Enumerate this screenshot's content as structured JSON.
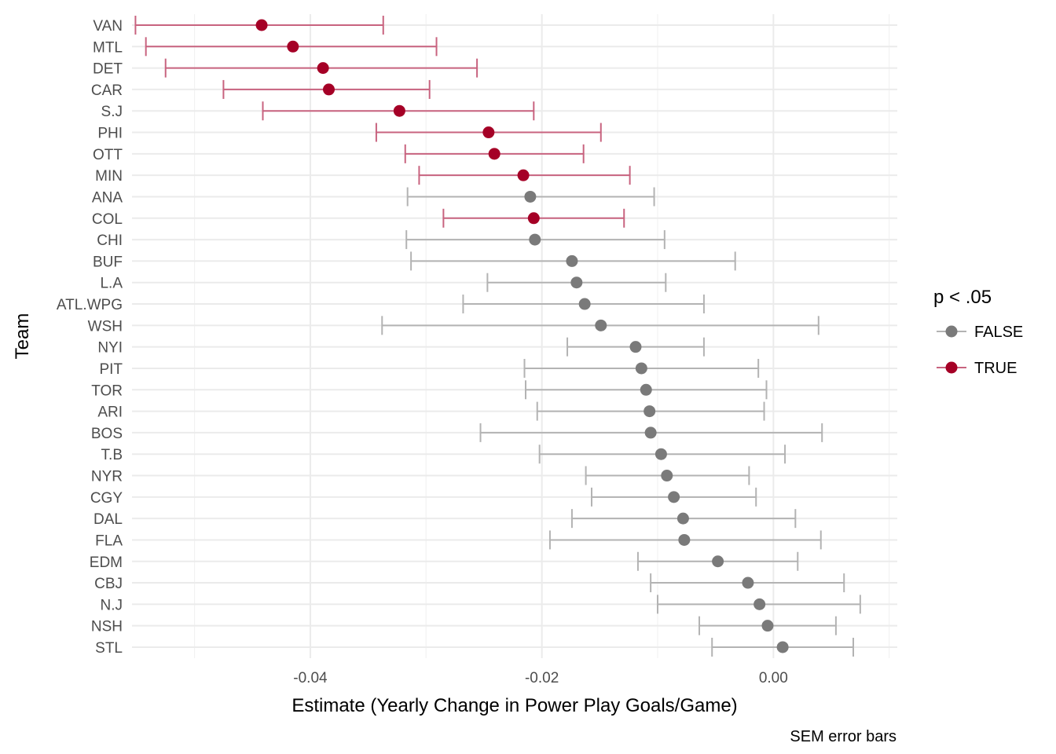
{
  "chart_data": {
    "type": "scatter",
    "xlabel": "Estimate (Yearly Change in Power Play Goals/Game)",
    "ylabel": "Team",
    "caption": "SEM error bars",
    "xlim": [
      -0.0554,
      0.0107
    ],
    "xticks": [
      {
        "value": -0.04,
        "label": "-0.04"
      },
      {
        "value": -0.02,
        "label": "-0.02"
      },
      {
        "value": 0.0,
        "label": "0.00"
      }
    ],
    "minor_xticks": [
      -0.05,
      -0.03,
      -0.01,
      0.01
    ],
    "grid": true,
    "colors": {
      "FALSE": "#7a7a7a",
      "TRUE": "#a50026",
      "bar_FALSE": "#b3b3b3",
      "bar_TRUE": "#c8637f"
    },
    "legend": {
      "title": "p < .05",
      "placement": "right",
      "entries": [
        {
          "label": "FALSE",
          "key": "FALSE"
        },
        {
          "label": "TRUE",
          "key": "TRUE"
        }
      ]
    },
    "teams": [
      {
        "team": "VAN",
        "estimate": -0.0442,
        "low": -0.0551,
        "high": -0.0337,
        "sig": "TRUE"
      },
      {
        "team": "MTL",
        "estimate": -0.0415,
        "low": -0.0542,
        "high": -0.0291,
        "sig": "TRUE"
      },
      {
        "team": "DET",
        "estimate": -0.0389,
        "low": -0.0525,
        "high": -0.0256,
        "sig": "TRUE"
      },
      {
        "team": "CAR",
        "estimate": -0.0384,
        "low": -0.0475,
        "high": -0.0297,
        "sig": "TRUE"
      },
      {
        "team": "S.J",
        "estimate": -0.0323,
        "low": -0.0441,
        "high": -0.0207,
        "sig": "TRUE"
      },
      {
        "team": "PHI",
        "estimate": -0.0246,
        "low": -0.0343,
        "high": -0.0149,
        "sig": "TRUE"
      },
      {
        "team": "OTT",
        "estimate": -0.0241,
        "low": -0.0318,
        "high": -0.0164,
        "sig": "TRUE"
      },
      {
        "team": "MIN",
        "estimate": -0.0216,
        "low": -0.0306,
        "high": -0.0124,
        "sig": "TRUE"
      },
      {
        "team": "ANA",
        "estimate": -0.021,
        "low": -0.0316,
        "high": -0.0103,
        "sig": "FALSE"
      },
      {
        "team": "COL",
        "estimate": -0.0207,
        "low": -0.0285,
        "high": -0.0129,
        "sig": "TRUE"
      },
      {
        "team": "CHI",
        "estimate": -0.0206,
        "low": -0.0317,
        "high": -0.0094,
        "sig": "FALSE"
      },
      {
        "team": "BUF",
        "estimate": -0.0174,
        "low": -0.0313,
        "high": -0.0033,
        "sig": "FALSE"
      },
      {
        "team": "L.A",
        "estimate": -0.017,
        "low": -0.0247,
        "high": -0.0093,
        "sig": "FALSE"
      },
      {
        "team": "ATL.WPG",
        "estimate": -0.0163,
        "low": -0.0268,
        "high": -0.006,
        "sig": "FALSE"
      },
      {
        "team": "WSH",
        "estimate": -0.0149,
        "low": -0.0338,
        "high": 0.0039,
        "sig": "FALSE"
      },
      {
        "team": "NYI",
        "estimate": -0.0119,
        "low": -0.0178,
        "high": -0.006,
        "sig": "FALSE"
      },
      {
        "team": "PIT",
        "estimate": -0.0114,
        "low": -0.0215,
        "high": -0.0013,
        "sig": "FALSE"
      },
      {
        "team": "TOR",
        "estimate": -0.011,
        "low": -0.0214,
        "high": -0.0006,
        "sig": "FALSE"
      },
      {
        "team": "ARI",
        "estimate": -0.0107,
        "low": -0.0204,
        "high": -0.0008,
        "sig": "FALSE"
      },
      {
        "team": "BOS",
        "estimate": -0.0106,
        "low": -0.0253,
        "high": 0.0042,
        "sig": "FALSE"
      },
      {
        "team": "T.B",
        "estimate": -0.0097,
        "low": -0.0202,
        "high": 0.001,
        "sig": "FALSE"
      },
      {
        "team": "NYR",
        "estimate": -0.0092,
        "low": -0.0162,
        "high": -0.0021,
        "sig": "FALSE"
      },
      {
        "team": "CGY",
        "estimate": -0.0086,
        "low": -0.0157,
        "high": -0.0015,
        "sig": "FALSE"
      },
      {
        "team": "DAL",
        "estimate": -0.0078,
        "low": -0.0174,
        "high": 0.0019,
        "sig": "FALSE"
      },
      {
        "team": "FLA",
        "estimate": -0.0077,
        "low": -0.0193,
        "high": 0.0041,
        "sig": "FALSE"
      },
      {
        "team": "EDM",
        "estimate": -0.0048,
        "low": -0.0117,
        "high": 0.0021,
        "sig": "FALSE"
      },
      {
        "team": "CBJ",
        "estimate": -0.0022,
        "low": -0.0106,
        "high": 0.0061,
        "sig": "FALSE"
      },
      {
        "team": "N.J",
        "estimate": -0.0012,
        "low": -0.01,
        "high": 0.0075,
        "sig": "FALSE"
      },
      {
        "team": "NSH",
        "estimate": -0.0005,
        "low": -0.0064,
        "high": 0.0054,
        "sig": "FALSE"
      },
      {
        "team": "STL",
        "estimate": 0.0008,
        "low": -0.0053,
        "high": 0.0069,
        "sig": "FALSE"
      }
    ]
  }
}
